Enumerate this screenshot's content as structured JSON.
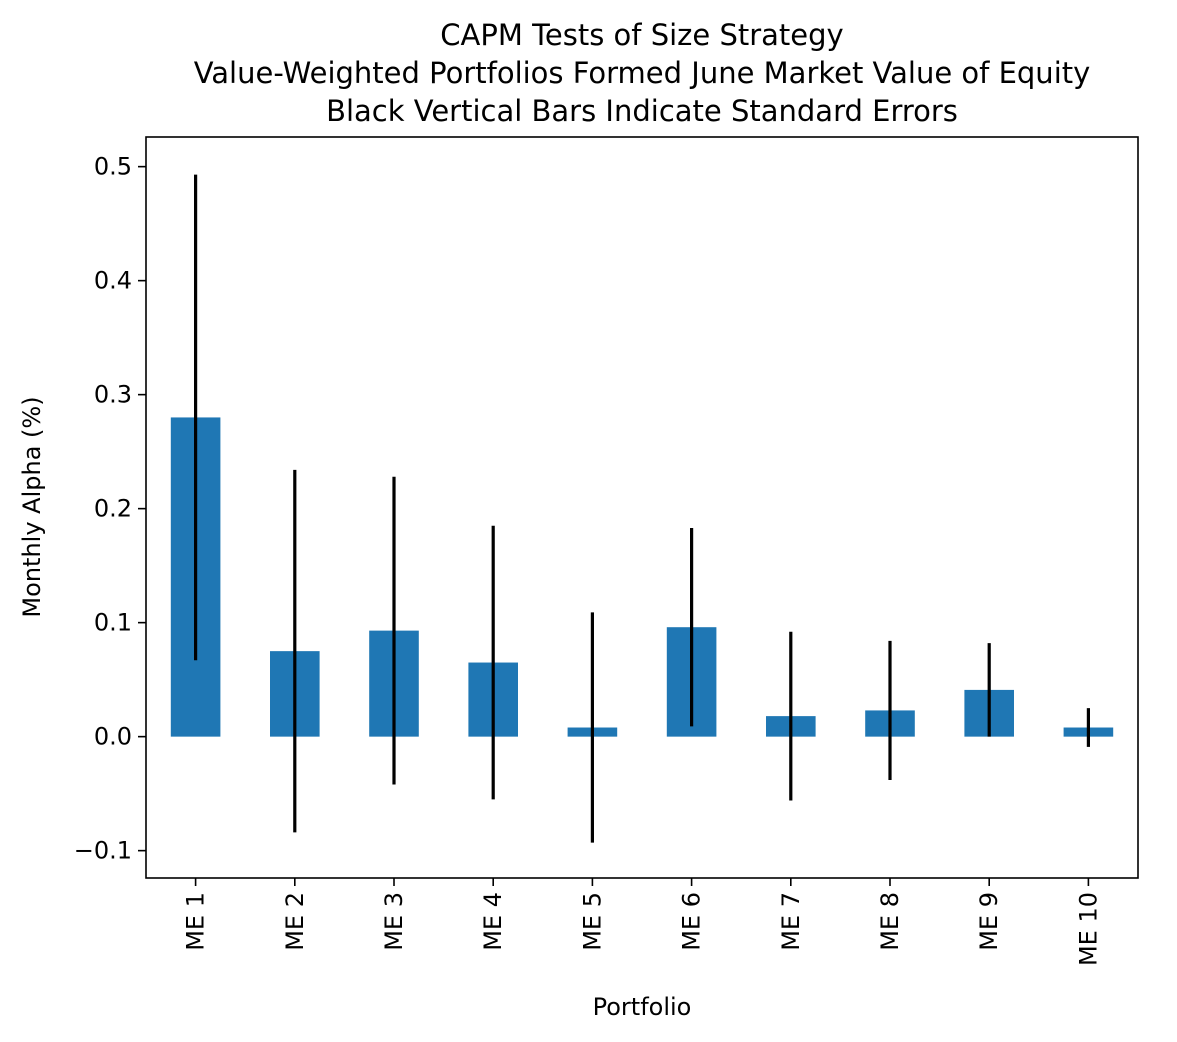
{
  "chart_data": {
    "type": "bar",
    "title_lines": [
      "CAPM Tests of Size Strategy",
      "Value-Weighted Portfolios Formed June Market Value of Equity",
      "Black Vertical Bars Indicate Standard Errors"
    ],
    "xlabel": "Portfolio",
    "ylabel": "Monthly Alpha (%)",
    "categories": [
      "ME 1",
      "ME 2",
      "ME 3",
      "ME 4",
      "ME 5",
      "ME 6",
      "ME 7",
      "ME 8",
      "ME 9",
      "ME 10"
    ],
    "values": [
      0.28,
      0.075,
      0.093,
      0.065,
      0.008,
      0.096,
      0.018,
      0.023,
      0.041,
      0.008
    ],
    "errors": [
      0.213,
      0.159,
      0.135,
      0.12,
      0.101,
      0.087,
      0.074,
      0.061,
      0.041,
      0.017
    ],
    "yticks": [
      -0.1,
      0.0,
      0.1,
      0.2,
      0.3,
      0.4,
      0.5
    ],
    "ytick_labels": [
      "−0.1",
      "0.0",
      "0.1",
      "0.2",
      "0.3",
      "0.4",
      "0.5"
    ],
    "ylim": [
      -0.124,
      0.526
    ],
    "bar_color": "#1f77b4",
    "error_color": "#000000",
    "grid": false,
    "legend": "none"
  }
}
